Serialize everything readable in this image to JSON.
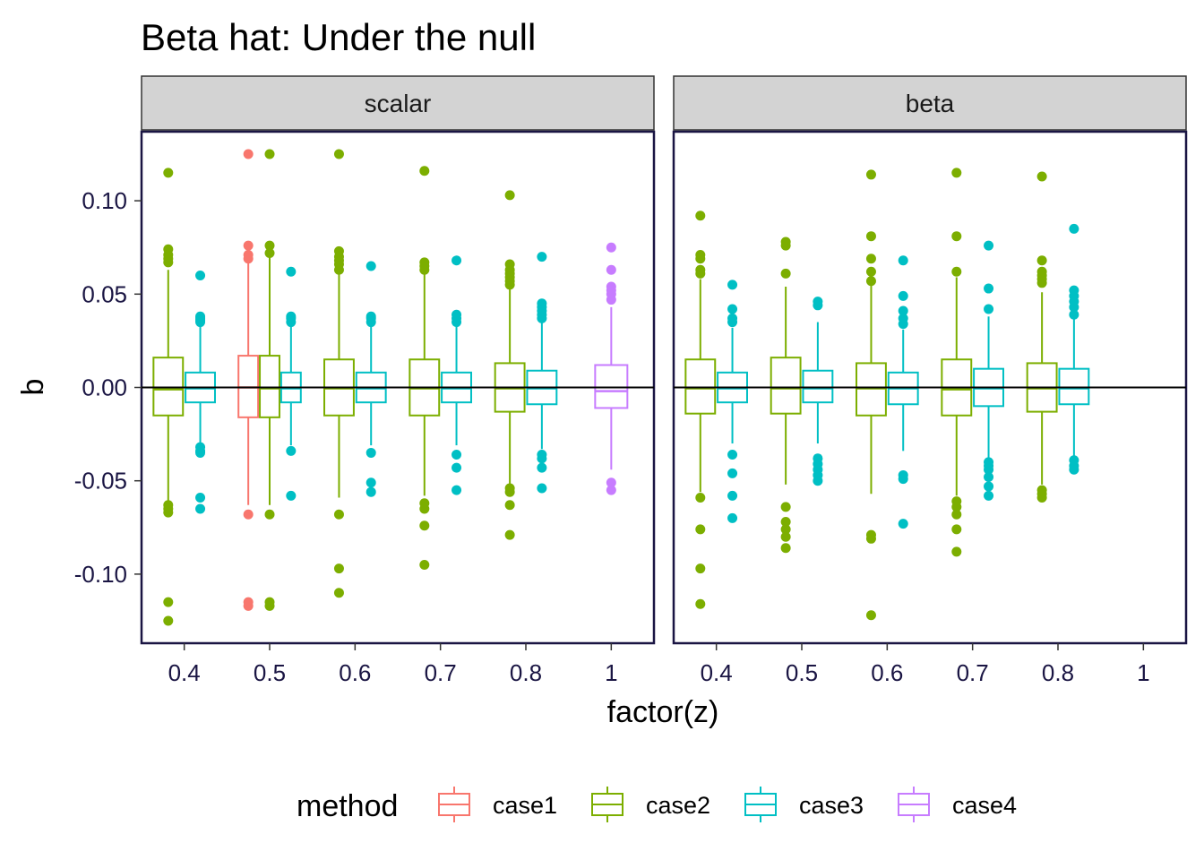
{
  "chart_data": {
    "type": "boxplot",
    "title": "Beta hat: Under the null",
    "xlabel": "factor(z)",
    "ylabel": "b",
    "ylim": [
      -0.137,
      0.137
    ],
    "y_ticks": [
      0.1,
      0.05,
      0.0,
      -0.05,
      -0.1
    ],
    "y_tick_labels": [
      "0.10",
      "0.05",
      "0.00",
      "-0.05",
      "-0.10"
    ],
    "categories": [
      "0.4",
      "0.5",
      "0.6",
      "0.7",
      "0.8",
      "1"
    ],
    "reference_line_y": 0,
    "grid": false,
    "legend": {
      "title": "method",
      "position": "bottom",
      "entries": [
        {
          "name": "case1",
          "color": "#F8766D"
        },
        {
          "name": "case2",
          "color": "#7CAE00"
        },
        {
          "name": "case3",
          "color": "#00BFC4"
        },
        {
          "name": "case4",
          "color": "#C77CFF"
        }
      ]
    },
    "panels": [
      {
        "strip": "scalar",
        "boxes": [
          {
            "category": "0.4",
            "method": "case2",
            "q1": -0.015,
            "median": -0.001,
            "q3": 0.016,
            "lower": -0.062,
            "upper": 0.063,
            "outliers": [
              0.115,
              0.074,
              0.071,
              0.069,
              0.067,
              -0.063,
              -0.065,
              -0.067,
              -0.115,
              -0.125
            ]
          },
          {
            "category": "0.4",
            "method": "case3",
            "q1": -0.008,
            "median": -0.0005,
            "q3": 0.008,
            "lower": -0.031,
            "upper": 0.035,
            "outliers": [
              0.06,
              0.038,
              0.037,
              0.036,
              0.035,
              -0.032,
              -0.034,
              -0.035,
              -0.059,
              -0.065
            ]
          },
          {
            "category": "0.5",
            "method": "case1",
            "q1": -0.016,
            "median": 0.0,
            "q3": 0.017,
            "lower": -0.063,
            "upper": 0.068,
            "outliers": [
              0.125,
              0.076,
              0.071,
              0.069,
              -0.068,
              -0.115,
              -0.117
            ]
          },
          {
            "category": "0.5",
            "method": "case2",
            "q1": -0.016,
            "median": -0.0005,
            "q3": 0.017,
            "lower": -0.063,
            "upper": 0.07,
            "outliers": [
              0.125,
              0.076,
              0.072,
              -0.068,
              -0.115,
              -0.117
            ]
          },
          {
            "category": "0.5",
            "method": "case3",
            "q1": -0.008,
            "median": -0.0005,
            "q3": 0.008,
            "lower": -0.031,
            "upper": 0.034,
            "outliers": [
              0.062,
              0.038,
              0.037,
              0.035,
              -0.034,
              -0.058
            ]
          },
          {
            "category": "0.6",
            "method": "case2",
            "q1": -0.015,
            "median": -0.0005,
            "q3": 0.015,
            "lower": -0.059,
            "upper": 0.062,
            "outliers": [
              0.125,
              0.073,
              0.07,
              0.068,
              0.066,
              0.063,
              -0.068,
              -0.097,
              -0.11
            ]
          },
          {
            "category": "0.6",
            "method": "case3",
            "q1": -0.008,
            "median": -0.0005,
            "q3": 0.008,
            "lower": -0.031,
            "upper": 0.034,
            "outliers": [
              0.065,
              0.038,
              0.037,
              0.035,
              -0.035,
              -0.051,
              -0.056
            ]
          },
          {
            "category": "0.7",
            "method": "case2",
            "q1": -0.015,
            "median": -0.0005,
            "q3": 0.015,
            "lower": -0.058,
            "upper": 0.062,
            "outliers": [
              0.116,
              0.067,
              0.065,
              0.063,
              -0.062,
              -0.065,
              -0.074,
              -0.095
            ]
          },
          {
            "category": "0.7",
            "method": "case3",
            "q1": -0.008,
            "median": -0.0005,
            "q3": 0.008,
            "lower": -0.031,
            "upper": 0.034,
            "outliers": [
              0.068,
              0.039,
              0.037,
              0.035,
              -0.036,
              -0.043,
              -0.055
            ]
          },
          {
            "category": "0.8",
            "method": "case2",
            "q1": -0.013,
            "median": -0.0005,
            "q3": 0.013,
            "lower": -0.053,
            "upper": 0.053,
            "outliers": [
              0.103,
              0.066,
              0.063,
              0.061,
              0.059,
              0.057,
              0.055,
              -0.054,
              -0.056,
              -0.063,
              -0.079
            ]
          },
          {
            "category": "0.8",
            "method": "case3",
            "q1": -0.009,
            "median": -0.0005,
            "q3": 0.009,
            "lower": -0.033,
            "upper": 0.035,
            "outliers": [
              0.07,
              0.045,
              0.043,
              0.041,
              0.039,
              0.037,
              -0.036,
              -0.038,
              -0.043,
              -0.054
            ]
          },
          {
            "category": "1",
            "method": "case4",
            "q1": -0.011,
            "median": -0.002,
            "q3": 0.012,
            "lower": -0.044,
            "upper": 0.043,
            "outliers": [
              0.075,
              0.063,
              0.054,
              0.052,
              0.05,
              0.047,
              -0.051,
              -0.055
            ]
          }
        ]
      },
      {
        "strip": "beta",
        "boxes": [
          {
            "category": "0.4",
            "method": "case2",
            "q1": -0.014,
            "median": -0.0005,
            "q3": 0.015,
            "lower": -0.056,
            "upper": 0.058,
            "outliers": [
              0.092,
              0.071,
              0.069,
              0.063,
              0.061,
              -0.059,
              -0.076,
              -0.097,
              -0.116
            ]
          },
          {
            "category": "0.4",
            "method": "case3",
            "q1": -0.008,
            "median": -0.0005,
            "q3": 0.008,
            "lower": -0.03,
            "upper": 0.032,
            "outliers": [
              0.055,
              0.042,
              0.037,
              0.035,
              -0.036,
              -0.046,
              -0.058,
              -0.07
            ]
          },
          {
            "category": "0.5",
            "method": "case2",
            "q1": -0.014,
            "median": -0.0005,
            "q3": 0.016,
            "lower": -0.052,
            "upper": 0.054,
            "outliers": [
              0.078,
              0.076,
              0.061,
              -0.064,
              -0.072,
              -0.076,
              -0.08,
              -0.086
            ]
          },
          {
            "category": "0.5",
            "method": "case3",
            "q1": -0.008,
            "median": -0.0005,
            "q3": 0.009,
            "lower": -0.03,
            "upper": 0.035,
            "outliers": [
              0.046,
              0.044,
              -0.038,
              -0.041,
              -0.044,
              -0.047,
              -0.05
            ]
          },
          {
            "category": "0.6",
            "method": "case2",
            "q1": -0.015,
            "median": -0.0005,
            "q3": 0.013,
            "lower": -0.057,
            "upper": 0.055,
            "outliers": [
              0.114,
              0.081,
              0.069,
              0.062,
              0.057,
              -0.079,
              -0.081,
              -0.122
            ]
          },
          {
            "category": "0.6",
            "method": "case3",
            "q1": -0.009,
            "median": -0.0005,
            "q3": 0.008,
            "lower": -0.034,
            "upper": 0.031,
            "outliers": [
              0.068,
              0.049,
              0.041,
              0.037,
              0.034,
              -0.047,
              -0.049,
              -0.073
            ]
          },
          {
            "category": "0.7",
            "method": "case2",
            "q1": -0.015,
            "median": -0.001,
            "q3": 0.015,
            "lower": -0.058,
            "upper": 0.059,
            "outliers": [
              0.115,
              0.081,
              0.062,
              -0.061,
              -0.064,
              -0.068,
              -0.076,
              -0.088
            ]
          },
          {
            "category": "0.7",
            "method": "case3",
            "q1": -0.01,
            "median": -0.0005,
            "q3": 0.01,
            "lower": -0.038,
            "upper": 0.038,
            "outliers": [
              0.076,
              0.053,
              0.042,
              -0.04,
              -0.042,
              -0.044,
              -0.048,
              -0.053,
              -0.058
            ]
          },
          {
            "category": "0.8",
            "method": "case2",
            "q1": -0.013,
            "median": -0.0005,
            "q3": 0.013,
            "lower": -0.052,
            "upper": 0.051,
            "outliers": [
              0.113,
              0.068,
              0.062,
              0.06,
              0.058,
              0.056,
              -0.055,
              -0.057,
              -0.059
            ]
          },
          {
            "category": "0.8",
            "method": "case3",
            "q1": -0.009,
            "median": -0.0005,
            "q3": 0.01,
            "lower": -0.038,
            "upper": 0.038,
            "outliers": [
              0.085,
              0.052,
              0.049,
              0.046,
              0.043,
              0.039,
              -0.039,
              -0.042,
              -0.044
            ]
          }
        ]
      }
    ]
  }
}
